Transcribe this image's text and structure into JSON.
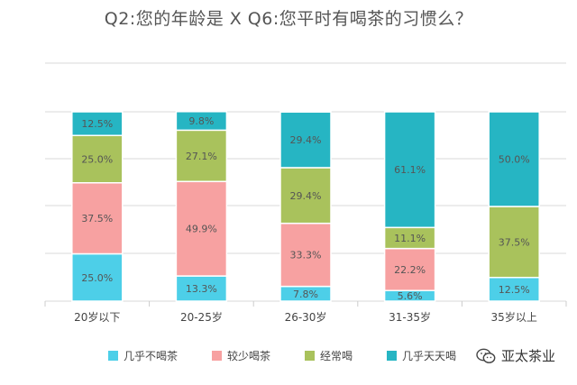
{
  "chart_data": {
    "type": "bar",
    "stacked": "percent",
    "title": "Q2:您的年龄是 X Q6:您平时有喝茶的习惯么？",
    "categories": [
      "20岁以下",
      "20-25岁",
      "26-30岁",
      "31-35岁",
      "35岁以上"
    ],
    "series": [
      {
        "name": "几乎不喝茶",
        "color": "#4dcfe8",
        "values": [
          25.0,
          13.3,
          7.8,
          5.6,
          12.5
        ],
        "labels": [
          "25.0%",
          "13.3%",
          "7.8%",
          "5.6%",
          "12.5%"
        ]
      },
      {
        "name": "较少喝茶",
        "color": "#f7a1a1",
        "values": [
          37.5,
          49.9,
          33.3,
          22.2,
          0
        ],
        "labels": [
          "37.5%",
          "49.9%",
          "33.3%",
          "22.2%",
          ""
        ]
      },
      {
        "name": "经常喝",
        "color": "#a9c25c",
        "values": [
          25.0,
          27.1,
          29.4,
          11.1,
          37.5
        ],
        "labels": [
          "25.0%",
          "27.1%",
          "29.4%",
          "11.1%",
          "37.5%"
        ]
      },
      {
        "name": "几乎天天喝",
        "color": "#26b5c3",
        "values": [
          12.5,
          9.8,
          29.4,
          61.1,
          50.0
        ],
        "labels": [
          "12.5%",
          "9.8%",
          "29.4%",
          "61.1%",
          "50.0%"
        ]
      }
    ],
    "ylim": [
      0,
      100
    ],
    "grid": true,
    "legend_position": "bottom"
  },
  "watermark": {
    "text": "亚太茶业",
    "icon": "wechat-icon"
  }
}
